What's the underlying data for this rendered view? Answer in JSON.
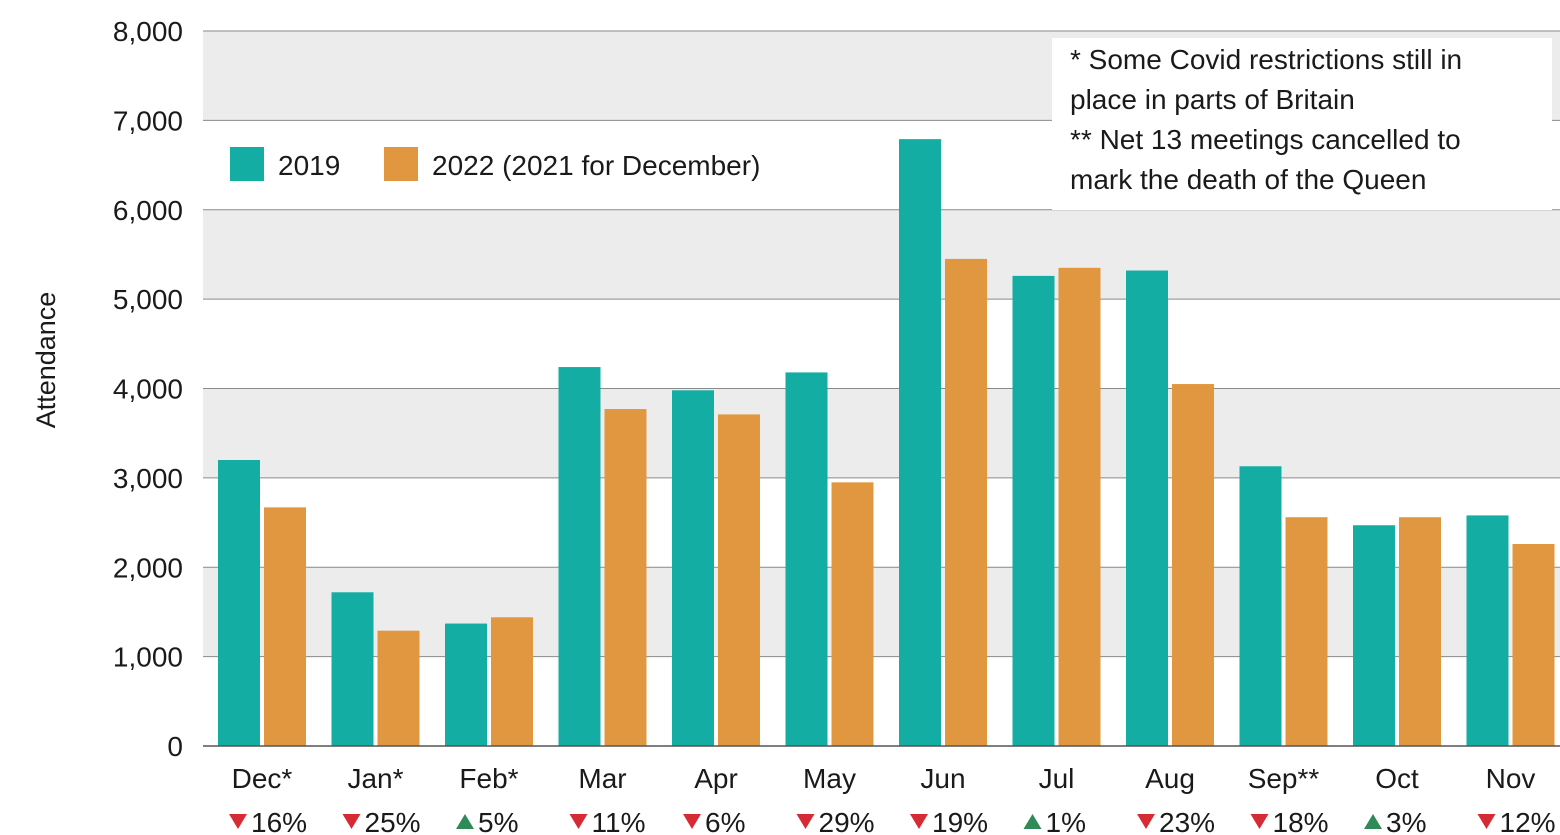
{
  "chart_data": {
    "type": "bar",
    "ylabel": "Attendance",
    "ylim": [
      0,
      8000
    ],
    "yticks": [
      0,
      1000,
      2000,
      3000,
      4000,
      5000,
      6000,
      7000,
      8000
    ],
    "ytick_labels": [
      "0",
      "1,000",
      "2,000",
      "3,000",
      "4,000",
      "5,000",
      "6,000",
      "7,000",
      "8,000"
    ],
    "grid": "horizontal, alternating grey bands",
    "legend_position": "top-left",
    "categories": [
      "Dec*",
      "Jan*",
      "Feb*",
      "Mar",
      "Apr",
      "May",
      "Jun",
      "Jul",
      "Aug",
      "Sep**",
      "Oct",
      "Nov"
    ],
    "series": [
      {
        "name": "2019",
        "color": "#13ADA3",
        "values": [
          3200,
          1720,
          1370,
          4240,
          3980,
          4180,
          6790,
          5260,
          5320,
          3130,
          2470,
          2580
        ]
      },
      {
        "name": "2022 (2021 for December)",
        "color": "#E1973F",
        "values": [
          2670,
          1290,
          1440,
          3770,
          3710,
          2950,
          5450,
          5350,
          4050,
          2560,
          2560,
          2260
        ]
      }
    ],
    "changes": [
      {
        "direction": "down",
        "label": "16%"
      },
      {
        "direction": "down",
        "label": "25%"
      },
      {
        "direction": "up",
        "label": "5%"
      },
      {
        "direction": "down",
        "label": "11%"
      },
      {
        "direction": "down",
        "label": "6%"
      },
      {
        "direction": "down",
        "label": "29%"
      },
      {
        "direction": "down",
        "label": "19%"
      },
      {
        "direction": "up",
        "label": "1%"
      },
      {
        "direction": "down",
        "label": "23%"
      },
      {
        "direction": "down",
        "label": "18%"
      },
      {
        "direction": "up",
        "label": "3%"
      },
      {
        "direction": "down",
        "label": "12%"
      }
    ],
    "change_colors": {
      "up": "#2E8B57",
      "down": "#D62B35"
    },
    "annotations": [
      "* Some Covid restrictions still in",
      "place in parts of Britain",
      "** Net 13 meetings cancelled to",
      "mark the death of the Queen"
    ]
  }
}
